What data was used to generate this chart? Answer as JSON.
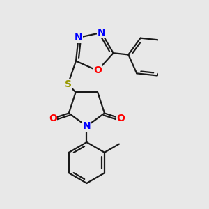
{
  "bg_color": "#e8e8e8",
  "bond_color": "#1a1a1a",
  "bond_width": 1.6,
  "dbo": 0.055,
  "atom_colors": {
    "N": "#0000ff",
    "O": "#ff0000",
    "S": "#999900"
  }
}
